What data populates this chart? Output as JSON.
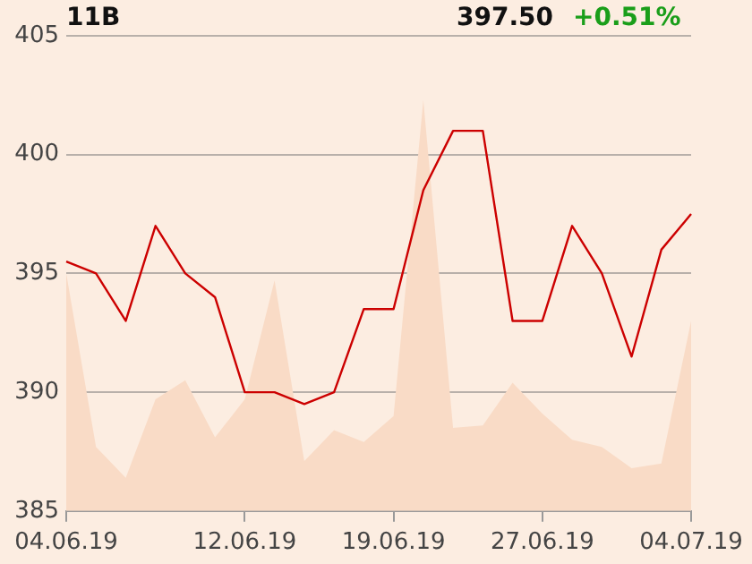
{
  "chart_data": {
    "type": "line",
    "annotations": [
      "11B",
      "397.50",
      "+0.51%"
    ],
    "categories": [
      "04.06.19",
      null,
      null,
      null,
      null,
      null,
      "12.06.19",
      null,
      null,
      null,
      null,
      "19.06.19",
      null,
      null,
      null,
      null,
      "27.06.19",
      null,
      null,
      null,
      null,
      "04.07.19"
    ],
    "series": [
      {
        "type": "area",
        "color": "#f9dbc6",
        "values": [
          395,
          387.7,
          386.4,
          389.7,
          390.5,
          388.1,
          389.7,
          394.7,
          387.1,
          388.4,
          387.9,
          389,
          402.3,
          388.5,
          388.6,
          390.4,
          389.1,
          388,
          387.7,
          386.8,
          387,
          393
        ]
      },
      {
        "type": "line",
        "color": "#cc0000",
        "values": [
          395.5,
          395,
          393,
          397,
          395,
          394,
          390,
          390,
          389.5,
          390,
          393.5,
          393.5,
          398.5,
          401,
          401,
          393,
          393,
          397,
          395,
          391.5,
          396,
          397.5
        ]
      }
    ],
    "ylim": [
      385,
      405
    ],
    "yticks": [
      385,
      390,
      395,
      400,
      405
    ],
    "grid": "y",
    "legend": false,
    "marker": "none",
    "line_style": "solid"
  }
}
